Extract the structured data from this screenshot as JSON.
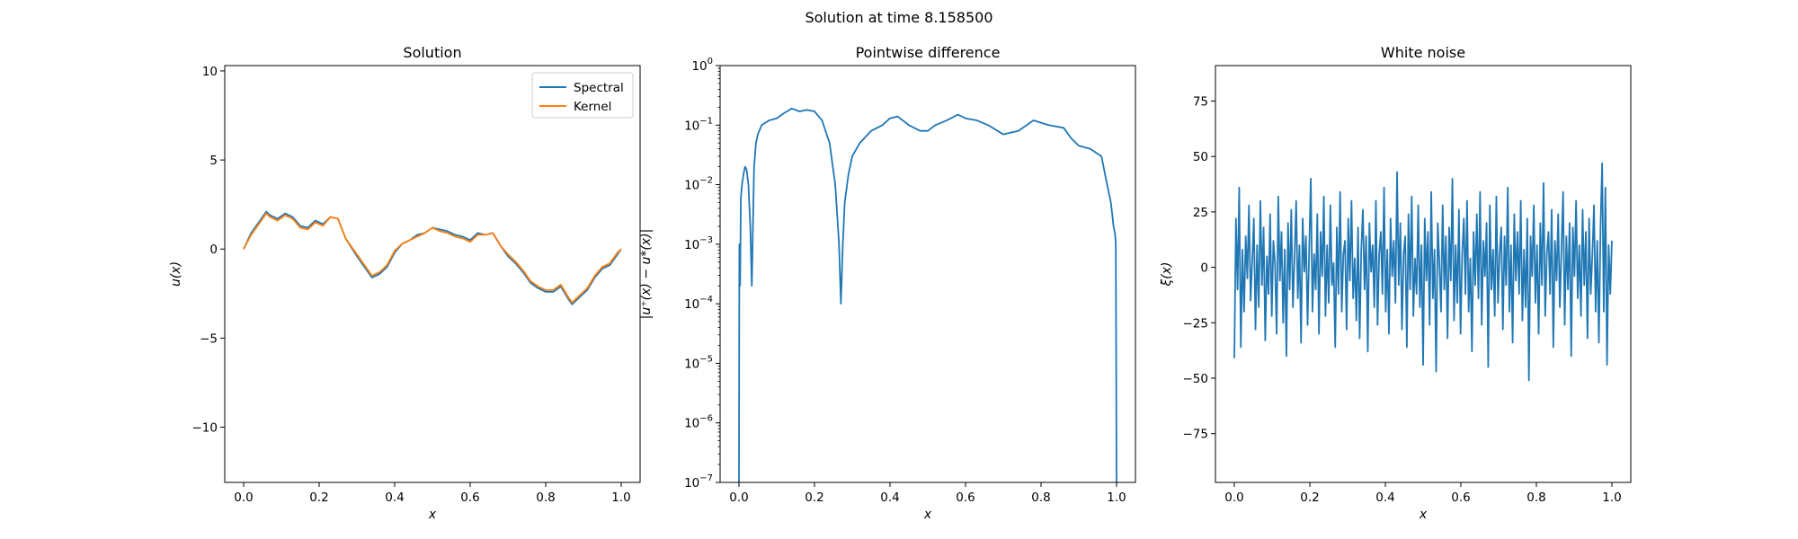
{
  "figure": {
    "suptitle": "Solution at time 8.158500"
  },
  "colors": {
    "blue": "#1f77b4",
    "orange": "#ff7f0e"
  },
  "chart_data": [
    {
      "type": "line",
      "title": "Solution",
      "xlabel": "x",
      "ylabel": "u(x)",
      "xlim": [
        -0.05,
        1.05
      ],
      "ylim": [
        -13.1,
        10.3
      ],
      "xticks": [
        0.0,
        0.2,
        0.4,
        0.6,
        0.8,
        1.0
      ],
      "xtick_labels": [
        "0.0",
        "0.2",
        "0.4",
        "0.6",
        "0.8",
        "1.0"
      ],
      "yticks": [
        -10,
        -5,
        0,
        5,
        10
      ],
      "ytick_labels": [
        "−10",
        "−5",
        "0",
        "5",
        "10"
      ],
      "legend": {
        "position": "top-right"
      },
      "series": [
        {
          "name": "Spectral",
          "color": "#1f77b4",
          "x": [
            0.0,
            0.02,
            0.04,
            0.06,
            0.07,
            0.09,
            0.11,
            0.13,
            0.15,
            0.17,
            0.19,
            0.21,
            0.23,
            0.25,
            0.27,
            0.3,
            0.32,
            0.34,
            0.36,
            0.38,
            0.4,
            0.42,
            0.44,
            0.46,
            0.48,
            0.5,
            0.52,
            0.54,
            0.56,
            0.58,
            0.6,
            0.62,
            0.64,
            0.66,
            0.68,
            0.7,
            0.72,
            0.74,
            0.76,
            0.78,
            0.8,
            0.82,
            0.84,
            0.86,
            0.87,
            0.89,
            0.91,
            0.93,
            0.95,
            0.97,
            0.99,
            1.0
          ],
          "y": [
            0.0,
            0.9,
            1.5,
            2.1,
            1.9,
            1.7,
            2.0,
            1.8,
            1.3,
            1.2,
            1.6,
            1.4,
            1.8,
            1.7,
            0.6,
            -0.4,
            -1.0,
            -1.6,
            -1.4,
            -1.0,
            -0.2,
            0.3,
            0.5,
            0.8,
            0.9,
            1.2,
            1.1,
            1.0,
            0.8,
            0.7,
            0.5,
            0.9,
            0.8,
            0.9,
            0.2,
            -0.4,
            -0.8,
            -1.3,
            -1.9,
            -2.2,
            -2.4,
            -2.4,
            -2.1,
            -2.8,
            -3.1,
            -2.7,
            -2.3,
            -1.6,
            -1.1,
            -0.9,
            -0.3,
            0.0
          ]
        },
        {
          "name": "Kernel",
          "color": "#ff7f0e",
          "x": [
            0.0,
            0.02,
            0.04,
            0.06,
            0.07,
            0.09,
            0.11,
            0.13,
            0.15,
            0.17,
            0.19,
            0.21,
            0.23,
            0.25,
            0.27,
            0.3,
            0.32,
            0.34,
            0.36,
            0.38,
            0.4,
            0.42,
            0.44,
            0.46,
            0.48,
            0.5,
            0.52,
            0.54,
            0.56,
            0.58,
            0.6,
            0.62,
            0.64,
            0.66,
            0.68,
            0.7,
            0.72,
            0.74,
            0.76,
            0.78,
            0.8,
            0.82,
            0.84,
            0.86,
            0.87,
            0.89,
            0.91,
            0.93,
            0.95,
            0.97,
            0.99,
            1.0
          ],
          "y": [
            0.0,
            0.8,
            1.4,
            2.0,
            1.8,
            1.6,
            1.9,
            1.7,
            1.2,
            1.1,
            1.5,
            1.3,
            1.8,
            1.7,
            0.6,
            -0.3,
            -0.9,
            -1.5,
            -1.3,
            -0.9,
            -0.1,
            0.3,
            0.5,
            0.7,
            0.9,
            1.2,
            1.0,
            0.9,
            0.7,
            0.6,
            0.4,
            0.8,
            0.8,
            0.9,
            0.2,
            -0.3,
            -0.7,
            -1.2,
            -1.8,
            -2.1,
            -2.3,
            -2.3,
            -2.0,
            -2.7,
            -3.0,
            -2.6,
            -2.2,
            -1.5,
            -1.0,
            -0.8,
            -0.2,
            0.0
          ]
        }
      ]
    },
    {
      "type": "line",
      "title": "Pointwise difference",
      "xlabel": "x",
      "ylabel": "|u⁺(x) − u*(x)|",
      "yscale": "log",
      "xlim": [
        -0.05,
        1.05
      ],
      "ylim": [
        1e-07,
        1.0
      ],
      "xticks": [
        0.0,
        0.2,
        0.4,
        0.6,
        0.8,
        1.0
      ],
      "xtick_labels": [
        "0.0",
        "0.2",
        "0.4",
        "0.6",
        "0.8",
        "1.0"
      ],
      "yticks_exp": [
        -7,
        -6,
        -5,
        -4,
        -3,
        -2,
        -1,
        0
      ],
      "series": [
        {
          "name": "",
          "color": "#1f77b4",
          "x": [
            0.0,
            0.001,
            0.003,
            0.005,
            0.008,
            0.012,
            0.016,
            0.02,
            0.025,
            0.03,
            0.034,
            0.037,
            0.04,
            0.045,
            0.05,
            0.06,
            0.08,
            0.1,
            0.12,
            0.14,
            0.16,
            0.18,
            0.2,
            0.22,
            0.24,
            0.255,
            0.265,
            0.27,
            0.275,
            0.28,
            0.29,
            0.3,
            0.32,
            0.35,
            0.38,
            0.4,
            0.42,
            0.45,
            0.48,
            0.5,
            0.52,
            0.55,
            0.58,
            0.6,
            0.63,
            0.66,
            0.7,
            0.74,
            0.78,
            0.82,
            0.86,
            0.88,
            0.9,
            0.93,
            0.96,
            0.975,
            0.985,
            0.992,
            0.996,
            0.998,
            1.0
          ],
          "y": [
            1e-07,
            0.001,
            0.0002,
            0.006,
            0.01,
            0.015,
            0.02,
            0.018,
            0.01,
            0.002,
            0.0002,
            0.002,
            0.02,
            0.05,
            0.07,
            0.1,
            0.12,
            0.13,
            0.16,
            0.19,
            0.17,
            0.18,
            0.17,
            0.12,
            0.05,
            0.01,
            0.001,
            0.0001,
            0.001,
            0.005,
            0.015,
            0.03,
            0.05,
            0.08,
            0.1,
            0.13,
            0.14,
            0.1,
            0.08,
            0.08,
            0.1,
            0.12,
            0.15,
            0.13,
            0.12,
            0.1,
            0.07,
            0.08,
            0.12,
            0.1,
            0.09,
            0.06,
            0.045,
            0.04,
            0.03,
            0.01,
            0.005,
            0.002,
            0.0015,
            0.001,
            1e-07
          ]
        }
      ]
    },
    {
      "type": "line",
      "title": "White noise",
      "xlabel": "x",
      "ylabel": "ξ(x)",
      "xlim": [
        -0.05,
        1.05
      ],
      "ylim": [
        -97,
        91
      ],
      "xticks": [
        0.0,
        0.2,
        0.4,
        0.6,
        0.8,
        1.0
      ],
      "xtick_labels": [
        "0.0",
        "0.2",
        "0.4",
        "0.6",
        "0.8",
        "1.0"
      ],
      "yticks": [
        -75,
        -50,
        -25,
        0,
        25,
        50,
        75
      ],
      "ytick_labels": [
        "−75",
        "−50",
        "−25",
        "0",
        "25",
        "50",
        "75"
      ],
      "series": [
        {
          "name": "",
          "color": "#1f77b4",
          "y": [
            -41,
            22,
            -10,
            36,
            -36,
            8,
            -20,
            14,
            -5,
            28,
            -15,
            3,
            22,
            -28,
            10,
            -18,
            30,
            -8,
            18,
            -33,
            5,
            -12,
            24,
            -22,
            12,
            2,
            -30,
            32,
            -6,
            16,
            -25,
            8,
            -40,
            20,
            -10,
            26,
            -18,
            4,
            30,
            -14,
            10,
            -34,
            22,
            -2,
            14,
            -26,
            8,
            40,
            -20,
            6,
            -10,
            24,
            -30,
            16,
            -4,
            32,
            -22,
            10,
            -16,
            28,
            -8,
            2,
            -36,
            18,
            -12,
            34,
            -20,
            6,
            12,
            -28,
            22,
            -6,
            30,
            -14,
            4,
            -24,
            18,
            -32,
            8,
            26,
            -10,
            14,
            -38,
            20,
            -2,
            10,
            -18,
            30,
            -26,
            6,
            16,
            -12,
            36,
            -20,
            8,
            -30,
            22,
            -4,
            12,
            -16,
            43,
            -8,
            20,
            -28,
            6,
            14,
            -36,
            24,
            -10,
            32,
            -22,
            4,
            -12,
            28,
            -18,
            10,
            -44,
            22,
            -6,
            16,
            -26,
            34,
            -14,
            8,
            -47,
            20,
            2,
            -20,
            28,
            -10,
            14,
            -32,
            18,
            -6,
            40,
            -24,
            10,
            -16,
            26,
            -30,
            6,
            22,
            -12,
            30,
            -20,
            4,
            -38,
            16,
            -8,
            24,
            -14,
            34,
            -26,
            12,
            -4,
            20,
            -45,
            28,
            -10,
            8,
            -22,
            32,
            -16,
            6,
            18,
            -28,
            14,
            -8,
            36,
            -20,
            10,
            -34,
            24,
            -6,
            16,
            -12,
            30,
            -24,
            8,
            -18,
            22,
            -51,
            14,
            -4,
            28,
            -16,
            10,
            -30,
            20,
            -8,
            38,
            -22,
            6,
            16,
            -12,
            26,
            -36,
            12,
            -6,
            24,
            -18,
            8,
            34,
            -26,
            14,
            -10,
            20,
            -40,
            18,
            -4,
            30,
            -14,
            10,
            -22,
            26,
            -8,
            16,
            -32,
            22,
            -12,
            6,
            28,
            -20,
            12,
            -34,
            18,
            47,
            -20,
            36,
            -44,
            10,
            -12,
            12
          ]
        }
      ]
    }
  ]
}
